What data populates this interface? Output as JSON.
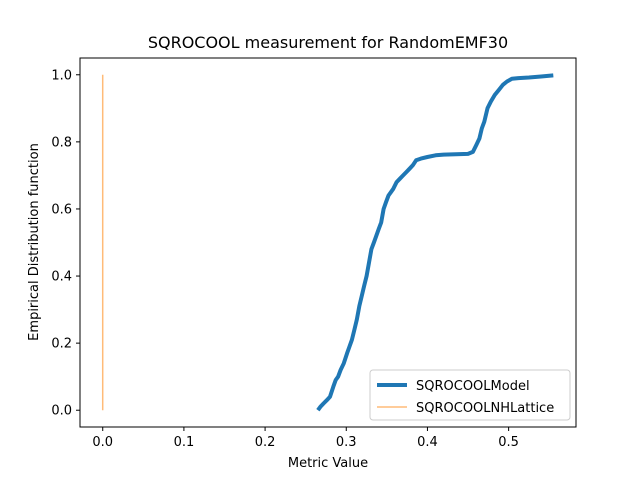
{
  "chart_data": {
    "type": "line",
    "title": "SQROCOOL measurement for RandomEMF30",
    "xlabel": "Metric Value",
    "ylabel": "Empirical Distribution function",
    "xlim": [
      -0.028,
      0.583
    ],
    "ylim": [
      -0.05,
      1.05
    ],
    "xticks": [
      {
        "value": 0.0,
        "label": "0.0"
      },
      {
        "value": 0.1,
        "label": "0.1"
      },
      {
        "value": 0.2,
        "label": "0.2"
      },
      {
        "value": 0.3,
        "label": "0.3"
      },
      {
        "value": 0.4,
        "label": "0.4"
      },
      {
        "value": 0.5,
        "label": "0.5"
      }
    ],
    "yticks": [
      {
        "value": 0.0,
        "label": "0.0"
      },
      {
        "value": 0.2,
        "label": "0.2"
      },
      {
        "value": 0.4,
        "label": "0.4"
      },
      {
        "value": 0.6,
        "label": "0.6"
      },
      {
        "value": 0.8,
        "label": "0.8"
      },
      {
        "value": 1.0,
        "label": "1.0"
      }
    ],
    "grid": false,
    "legend": "lower-right",
    "series": [
      {
        "name": "SQROCOOLModel",
        "color": "#1f77b4",
        "x": [
          0.265,
          0.268,
          0.272,
          0.276,
          0.28,
          0.284,
          0.287,
          0.29,
          0.293,
          0.297,
          0.301,
          0.304,
          0.307,
          0.31,
          0.313,
          0.316,
          0.319,
          0.322,
          0.325,
          0.328,
          0.331,
          0.334,
          0.337,
          0.34,
          0.343,
          0.346,
          0.349,
          0.352,
          0.355,
          0.358,
          0.362,
          0.366,
          0.37,
          0.374,
          0.378,
          0.382,
          0.386,
          0.392,
          0.4,
          0.41,
          0.42,
          0.435,
          0.45,
          0.456,
          0.46,
          0.464,
          0.467,
          0.47,
          0.474,
          0.478,
          0.483,
          0.488,
          0.493,
          0.498,
          0.504,
          0.512,
          0.525,
          0.54,
          0.555
        ],
        "y": [
          0.0,
          0.01,
          0.02,
          0.03,
          0.04,
          0.07,
          0.09,
          0.1,
          0.12,
          0.14,
          0.17,
          0.19,
          0.21,
          0.24,
          0.27,
          0.31,
          0.34,
          0.37,
          0.4,
          0.44,
          0.48,
          0.5,
          0.52,
          0.54,
          0.56,
          0.6,
          0.62,
          0.64,
          0.65,
          0.66,
          0.68,
          0.69,
          0.7,
          0.71,
          0.72,
          0.73,
          0.745,
          0.75,
          0.755,
          0.76,
          0.762,
          0.763,
          0.764,
          0.77,
          0.79,
          0.81,
          0.84,
          0.86,
          0.9,
          0.92,
          0.94,
          0.955,
          0.97,
          0.98,
          0.988,
          0.99,
          0.992,
          0.995,
          0.998
        ]
      },
      {
        "name": "SQROCOOLNHLattice",
        "color": "#ffbb78",
        "x": [
          0.0,
          0.0
        ],
        "y": [
          0.0,
          1.0
        ]
      }
    ]
  }
}
